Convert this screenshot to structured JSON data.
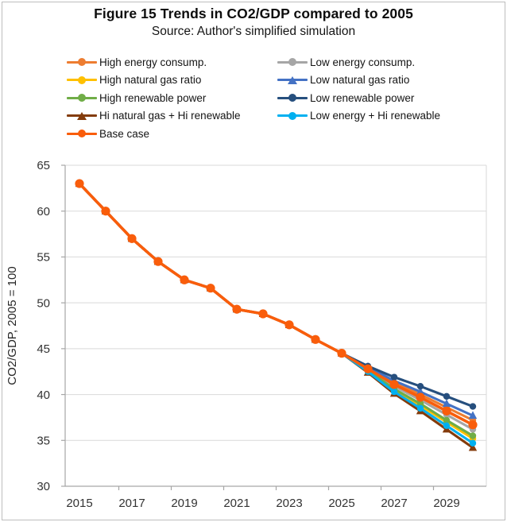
{
  "chart_data": {
    "type": "line",
    "title": "Figure 15 Trends in CO2/GDP compared to 2005",
    "subtitle": "Source: Author's simplified simulation",
    "ylabel": "CO2/GDP,  2005 = 100",
    "xlabel": "",
    "x": [
      2015,
      2016,
      2017,
      2018,
      2019,
      2020,
      2021,
      2022,
      2023,
      2024,
      2025,
      2026,
      2027,
      2028,
      2029,
      2030
    ],
    "xtick_labels": [
      "2015",
      "2017",
      "2019",
      "2021",
      "2023",
      "2025",
      "2027",
      "2029"
    ],
    "yticks": [
      30,
      35,
      40,
      45,
      50,
      55,
      60,
      65
    ],
    "ylim": [
      30,
      65
    ],
    "grid": "horizontal",
    "legend_position": "top-two-columns",
    "series": [
      {
        "name": "High energy consump.",
        "color": "#ED7D31",
        "marker": "circle",
        "size": "normal",
        "values": [
          63.0,
          60.0,
          57.0,
          54.5,
          52.5,
          51.6,
          49.3,
          48.8,
          47.6,
          46.0,
          44.5,
          42.9,
          41.3,
          40.0,
          38.6,
          37.2
        ]
      },
      {
        "name": "Low energy consump.",
        "color": "#A6A6A6",
        "marker": "circle",
        "size": "normal",
        "values": [
          63.0,
          60.0,
          57.0,
          54.5,
          52.5,
          51.6,
          49.3,
          48.8,
          47.6,
          46.0,
          44.5,
          42.7,
          40.9,
          39.4,
          37.8,
          36.2
        ]
      },
      {
        "name": "High natural gas ratio",
        "color": "#FFC000",
        "marker": "circle",
        "size": "normal",
        "values": [
          63.0,
          60.0,
          57.0,
          54.5,
          52.5,
          51.6,
          49.3,
          48.8,
          47.6,
          46.0,
          44.5,
          42.6,
          40.5,
          38.8,
          37.0,
          35.2
        ]
      },
      {
        "name": "Low natural gas ratio",
        "color": "#4472C4",
        "marker": "triangle",
        "size": "normal",
        "values": [
          63.0,
          60.0,
          57.0,
          54.5,
          52.5,
          51.6,
          49.3,
          48.8,
          47.6,
          46.0,
          44.5,
          43.0,
          41.5,
          40.3,
          39.0,
          37.7
        ]
      },
      {
        "name": "High renewable power",
        "color": "#70AD47",
        "marker": "circle",
        "size": "normal",
        "values": [
          63.0,
          60.0,
          57.0,
          54.5,
          52.5,
          51.6,
          49.3,
          48.8,
          47.6,
          46.0,
          44.5,
          42.6,
          40.6,
          39.0,
          37.2,
          35.5
        ]
      },
      {
        "name": "Low renewable power",
        "color": "#264F7E",
        "marker": "circle",
        "size": "normal",
        "values": [
          63.0,
          60.0,
          57.0,
          54.5,
          52.5,
          51.6,
          49.3,
          48.8,
          47.6,
          46.0,
          44.5,
          43.1,
          41.9,
          40.9,
          39.8,
          38.7
        ]
      },
      {
        "name": "Hi natural gas + Hi renewable",
        "color": "#843C0C",
        "marker": "triangle",
        "size": "normal",
        "values": [
          63.0,
          60.0,
          57.0,
          54.5,
          52.5,
          51.6,
          49.3,
          48.8,
          47.6,
          46.0,
          44.5,
          42.4,
          40.1,
          38.2,
          36.2,
          34.2
        ]
      },
      {
        "name": "Low energy + Hi renewable",
        "color": "#00B0F0",
        "marker": "circle",
        "size": "normal",
        "values": [
          63.0,
          60.0,
          57.0,
          54.5,
          52.5,
          51.6,
          49.3,
          48.8,
          47.6,
          46.0,
          44.5,
          42.5,
          40.3,
          38.5,
          36.6,
          34.7
        ]
      },
      {
        "name": "Base case",
        "color": "#F95D0B",
        "marker": "circle",
        "size": "large",
        "values": [
          63.0,
          60.0,
          57.0,
          54.5,
          52.5,
          51.6,
          49.3,
          48.8,
          47.6,
          46.0,
          44.5,
          42.8,
          41.1,
          39.7,
          38.2,
          36.7
        ]
      }
    ]
  }
}
